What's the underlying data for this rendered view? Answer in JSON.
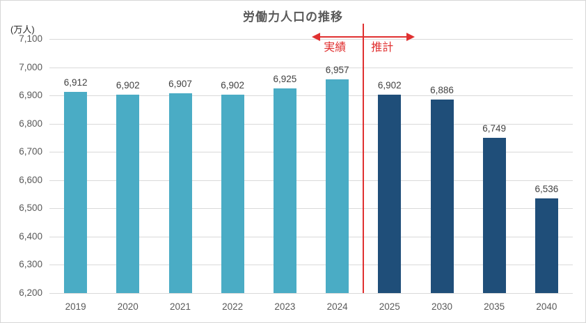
{
  "title": "労働力人口の推移",
  "unit_label": "(万人)",
  "annotations": {
    "actual_label": "実績",
    "forecast_label": "推計",
    "divider_between": [
      "2024",
      "2025"
    ],
    "annotation_color": "#e03030"
  },
  "chart_data": {
    "type": "bar",
    "title": "労働力人口の推移",
    "categories": [
      "2019",
      "2020",
      "2021",
      "2022",
      "2023",
      "2024",
      "2025",
      "2030",
      "2035",
      "2040"
    ],
    "values": [
      6912,
      6902,
      6907,
      6902,
      6925,
      6957,
      6902,
      6886,
      6749,
      6536
    ],
    "data_labels": [
      "6,912",
      "6,902",
      "6,907",
      "6,902",
      "6,925",
      "6,957",
      "6,902",
      "6,886",
      "6,749",
      "6,536"
    ],
    "series_segments": [
      {
        "name": "実績",
        "category_range": [
          "2019",
          "2024"
        ],
        "color": "#4aacc5"
      },
      {
        "name": "推計",
        "category_range": [
          "2025",
          "2040"
        ],
        "color": "#1f4e79"
      }
    ],
    "ylabel": "(万人)",
    "ylim": [
      6200,
      7100
    ],
    "ytick_step": 100,
    "ytick_labels": [
      "7,100",
      "7,000",
      "6,900",
      "6,800",
      "6,700",
      "6,600",
      "6,500",
      "6,400",
      "6,300",
      "6,200"
    ],
    "grid": true,
    "gridline_color": "#d9d9d9",
    "legend": "none"
  }
}
